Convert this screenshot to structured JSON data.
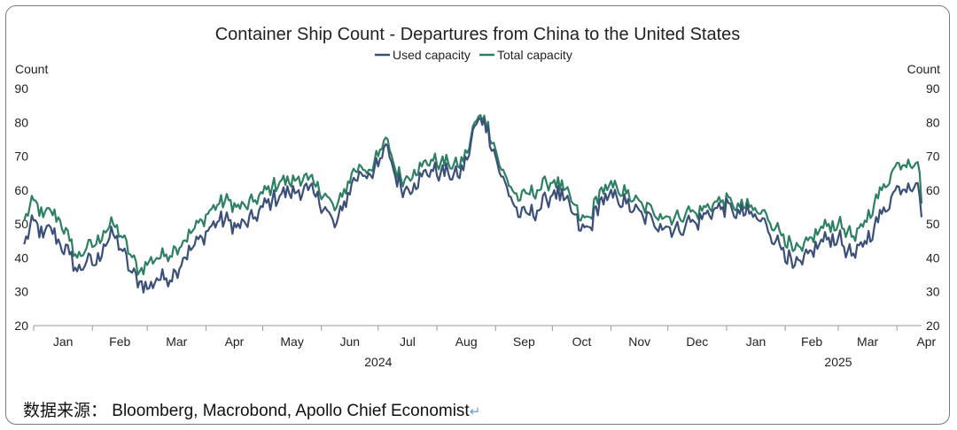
{
  "chart_data": {
    "type": "line",
    "title": "Container Ship Count - Departures from China to the United States",
    "ylabel_left": "Count",
    "ylabel_right": "Count",
    "ylim": [
      20,
      90
    ],
    "yticks": [
      20,
      30,
      40,
      50,
      60,
      70,
      80,
      90
    ],
    "legend": "top-center",
    "grid": false,
    "x_start": "2024-01-01",
    "x_end": "2025-04-14",
    "x_tick_dates": [
      "2024-01-01",
      "2024-02-01",
      "2024-03-01",
      "2024-04-01",
      "2024-05-01",
      "2024-06-01",
      "2024-07-01",
      "2024-08-01",
      "2024-09-01",
      "2024-10-01",
      "2024-11-01",
      "2024-12-01",
      "2025-01-01",
      "2025-02-01",
      "2025-03-01",
      "2025-04-01"
    ],
    "month_labels": [
      "Jan",
      "Feb",
      "Mar",
      "Apr",
      "May",
      "Jun",
      "Jul",
      "Aug",
      "Sep",
      "Oct",
      "Nov",
      "Dec",
      "Jan",
      "Feb",
      "Mar",
      "Apr"
    ],
    "year_labels": [
      {
        "label": "2024",
        "date": "2024-07-01"
      },
      {
        "label": "2025",
        "date": "2025-03-01"
      }
    ],
    "series": [
      {
        "name": "Used capacity",
        "color": "#3b5078",
        "points": [
          [
            "2023-12-27",
            44
          ],
          [
            "2024-01-01",
            51
          ],
          [
            "2024-01-06",
            46
          ],
          [
            "2024-01-10",
            49
          ],
          [
            "2024-01-15",
            44
          ],
          [
            "2024-01-20",
            41
          ],
          [
            "2024-01-24",
            36
          ],
          [
            "2024-01-29",
            39
          ],
          [
            "2024-02-03",
            38
          ],
          [
            "2024-02-07",
            44
          ],
          [
            "2024-02-12",
            47
          ],
          [
            "2024-02-17",
            42
          ],
          [
            "2024-02-21",
            36
          ],
          [
            "2024-02-26",
            33
          ],
          [
            "2024-03-02",
            31
          ],
          [
            "2024-03-06",
            34
          ],
          [
            "2024-03-11",
            34
          ],
          [
            "2024-03-16",
            36
          ],
          [
            "2024-03-20",
            40
          ],
          [
            "2024-03-25",
            43
          ],
          [
            "2024-03-30",
            46
          ],
          [
            "2024-04-03",
            49
          ],
          [
            "2024-04-08",
            51
          ],
          [
            "2024-04-13",
            51
          ],
          [
            "2024-04-17",
            49
          ],
          [
            "2024-04-22",
            50
          ],
          [
            "2024-04-27",
            52
          ],
          [
            "2024-05-01",
            55
          ],
          [
            "2024-05-06",
            57
          ],
          [
            "2024-05-11",
            59
          ],
          [
            "2024-05-15",
            59
          ],
          [
            "2024-05-20",
            60
          ],
          [
            "2024-05-25",
            60
          ],
          [
            "2024-05-29",
            58
          ],
          [
            "2024-06-03",
            55
          ],
          [
            "2024-06-08",
            49
          ],
          [
            "2024-06-12",
            54
          ],
          [
            "2024-06-17",
            62
          ],
          [
            "2024-06-22",
            65
          ],
          [
            "2024-06-26",
            65
          ],
          [
            "2024-07-01",
            67
          ],
          [
            "2024-07-06",
            73
          ],
          [
            "2024-07-10",
            64
          ],
          [
            "2024-07-15",
            60
          ],
          [
            "2024-07-20",
            62
          ],
          [
            "2024-07-24",
            64
          ],
          [
            "2024-07-29",
            66
          ],
          [
            "2024-08-03",
            65
          ],
          [
            "2024-08-07",
            65
          ],
          [
            "2024-08-12",
            64
          ],
          [
            "2024-08-17",
            69
          ],
          [
            "2024-08-21",
            79
          ],
          [
            "2024-08-26",
            81
          ],
          [
            "2024-08-31",
            72
          ],
          [
            "2024-09-04",
            64
          ],
          [
            "2024-09-09",
            58
          ],
          [
            "2024-09-14",
            52
          ],
          [
            "2024-09-18",
            53
          ],
          [
            "2024-09-23",
            54
          ],
          [
            "2024-09-28",
            57
          ],
          [
            "2024-10-02",
            60
          ],
          [
            "2024-10-07",
            57
          ],
          [
            "2024-10-12",
            53
          ],
          [
            "2024-10-16",
            48
          ],
          [
            "2024-10-21",
            49
          ],
          [
            "2024-10-26",
            57
          ],
          [
            "2024-10-30",
            57
          ],
          [
            "2024-11-04",
            58
          ],
          [
            "2024-11-09",
            56
          ],
          [
            "2024-11-13",
            54
          ],
          [
            "2024-11-18",
            52
          ],
          [
            "2024-11-23",
            51
          ],
          [
            "2024-11-27",
            50
          ],
          [
            "2024-12-02",
            49
          ],
          [
            "2024-12-07",
            48
          ],
          [
            "2024-12-11",
            51
          ],
          [
            "2024-12-16",
            50
          ],
          [
            "2024-12-21",
            53
          ],
          [
            "2024-12-25",
            54
          ],
          [
            "2024-12-30",
            55
          ],
          [
            "2025-01-04",
            54
          ],
          [
            "2025-01-08",
            53
          ],
          [
            "2025-01-13",
            53
          ],
          [
            "2025-01-18",
            51
          ],
          [
            "2025-01-22",
            50
          ],
          [
            "2025-01-27",
            45
          ],
          [
            "2025-01-31",
            43
          ],
          [
            "2025-02-05",
            37
          ],
          [
            "2025-02-10",
            38
          ],
          [
            "2025-02-15",
            42
          ],
          [
            "2025-02-19",
            44
          ],
          [
            "2025-02-24",
            46
          ],
          [
            "2025-03-01",
            46
          ],
          [
            "2025-03-06",
            42
          ],
          [
            "2025-03-10",
            40
          ],
          [
            "2025-03-15",
            45
          ],
          [
            "2025-03-20",
            49
          ],
          [
            "2025-03-24",
            53
          ],
          [
            "2025-03-29",
            58
          ],
          [
            "2025-04-02",
            61
          ],
          [
            "2025-04-07",
            62
          ],
          [
            "2025-04-11",
            62
          ],
          [
            "2025-04-13",
            58
          ],
          [
            "2025-04-14",
            52
          ]
        ]
      },
      {
        "name": "Total capacity",
        "color": "#2e8062",
        "points": [
          [
            "2023-12-27",
            51
          ],
          [
            "2024-01-01",
            57
          ],
          [
            "2024-01-06",
            52
          ],
          [
            "2024-01-10",
            54
          ],
          [
            "2024-01-15",
            51
          ],
          [
            "2024-01-20",
            45
          ],
          [
            "2024-01-24",
            40
          ],
          [
            "2024-01-29",
            43
          ],
          [
            "2024-02-03",
            44
          ],
          [
            "2024-02-07",
            48
          ],
          [
            "2024-02-12",
            50
          ],
          [
            "2024-02-17",
            46
          ],
          [
            "2024-02-21",
            41
          ],
          [
            "2024-02-26",
            36
          ],
          [
            "2024-03-02",
            39
          ],
          [
            "2024-03-06",
            40
          ],
          [
            "2024-03-11",
            41
          ],
          [
            "2024-03-16",
            43
          ],
          [
            "2024-03-20",
            45
          ],
          [
            "2024-03-25",
            48
          ],
          [
            "2024-03-30",
            51
          ],
          [
            "2024-04-03",
            54
          ],
          [
            "2024-04-08",
            56
          ],
          [
            "2024-04-13",
            57
          ],
          [
            "2024-04-17",
            55
          ],
          [
            "2024-04-22",
            55
          ],
          [
            "2024-04-27",
            57
          ],
          [
            "2024-05-01",
            59
          ],
          [
            "2024-05-06",
            61
          ],
          [
            "2024-05-11",
            63
          ],
          [
            "2024-05-15",
            62
          ],
          [
            "2024-05-20",
            64
          ],
          [
            "2024-05-25",
            63
          ],
          [
            "2024-05-29",
            61
          ],
          [
            "2024-06-03",
            59
          ],
          [
            "2024-06-08",
            54
          ],
          [
            "2024-06-12",
            58
          ],
          [
            "2024-06-17",
            65
          ],
          [
            "2024-06-22",
            67
          ],
          [
            "2024-06-26",
            66
          ],
          [
            "2024-07-01",
            70
          ],
          [
            "2024-07-06",
            75
          ],
          [
            "2024-07-10",
            66
          ],
          [
            "2024-07-15",
            63
          ],
          [
            "2024-07-20",
            66
          ],
          [
            "2024-07-24",
            67
          ],
          [
            "2024-07-29",
            69
          ],
          [
            "2024-08-03",
            68
          ],
          [
            "2024-08-07",
            68
          ],
          [
            "2024-08-12",
            67
          ],
          [
            "2024-08-17",
            71
          ],
          [
            "2024-08-21",
            80
          ],
          [
            "2024-08-26",
            82
          ],
          [
            "2024-08-31",
            74
          ],
          [
            "2024-09-04",
            66
          ],
          [
            "2024-09-09",
            61
          ],
          [
            "2024-09-14",
            57
          ],
          [
            "2024-09-18",
            59
          ],
          [
            "2024-09-23",
            60
          ],
          [
            "2024-09-28",
            62
          ],
          [
            "2024-10-02",
            63
          ],
          [
            "2024-10-07",
            60
          ],
          [
            "2024-10-12",
            56
          ],
          [
            "2024-10-16",
            51
          ],
          [
            "2024-10-21",
            52
          ],
          [
            "2024-10-26",
            60
          ],
          [
            "2024-10-30",
            60
          ],
          [
            "2024-11-04",
            61
          ],
          [
            "2024-11-09",
            59
          ],
          [
            "2024-11-13",
            57
          ],
          [
            "2024-11-18",
            55
          ],
          [
            "2024-11-23",
            54
          ],
          [
            "2024-11-27",
            53
          ],
          [
            "2024-12-02",
            52
          ],
          [
            "2024-12-07",
            52
          ],
          [
            "2024-12-11",
            54
          ],
          [
            "2024-12-16",
            53
          ],
          [
            "2024-12-21",
            55
          ],
          [
            "2024-12-25",
            56
          ],
          [
            "2024-12-30",
            57
          ],
          [
            "2025-01-04",
            56
          ],
          [
            "2025-01-08",
            55
          ],
          [
            "2025-01-13",
            55
          ],
          [
            "2025-01-18",
            53
          ],
          [
            "2025-01-22",
            53
          ],
          [
            "2025-01-27",
            49
          ],
          [
            "2025-01-31",
            47
          ],
          [
            "2025-02-05",
            42
          ],
          [
            "2025-02-10",
            42
          ],
          [
            "2025-02-15",
            46
          ],
          [
            "2025-02-19",
            48
          ],
          [
            "2025-02-24",
            50
          ],
          [
            "2025-03-01",
            50
          ],
          [
            "2025-03-06",
            48
          ],
          [
            "2025-03-10",
            45
          ],
          [
            "2025-03-15",
            51
          ],
          [
            "2025-03-20",
            56
          ],
          [
            "2025-03-24",
            60
          ],
          [
            "2025-03-29",
            65
          ],
          [
            "2025-04-02",
            68
          ],
          [
            "2025-04-07",
            69
          ],
          [
            "2025-04-11",
            68
          ],
          [
            "2025-04-13",
            65
          ],
          [
            "2025-04-14",
            56
          ]
        ]
      }
    ]
  },
  "source": {
    "text": "数据来源：  Bloomberg, Macrobond, Apollo Chief Economist",
    "mark": "↵"
  }
}
